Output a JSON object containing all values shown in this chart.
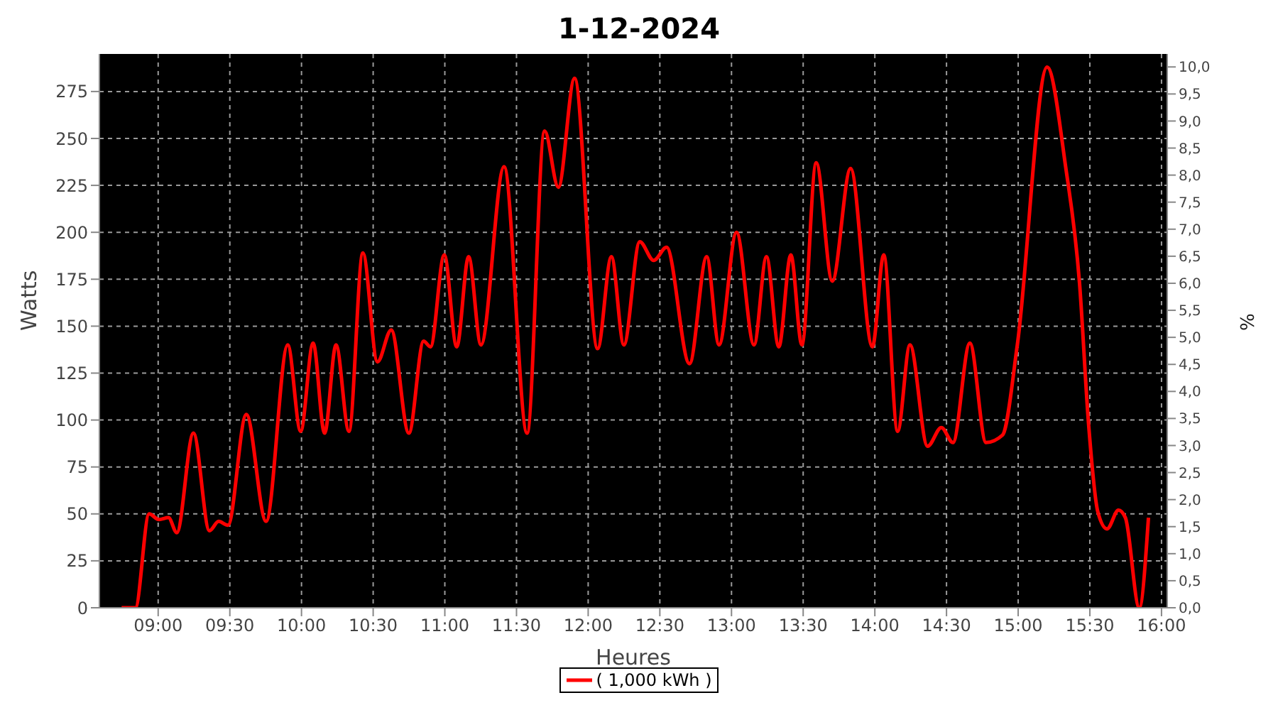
{
  "chart_data": {
    "type": "line",
    "title": "1-12-2024",
    "xlabel": "Heures",
    "ylabel": "Watts",
    "y2label": "%",
    "x": [
      8.745,
      8.841,
      8.937,
      9.005,
      9.072,
      9.13,
      9.246,
      9.358,
      9.422,
      9.487,
      9.615,
      9.753,
      9.904,
      9.994,
      10.081,
      10.161,
      10.241,
      10.331,
      10.428,
      10.53,
      10.626,
      10.749,
      10.852,
      10.9,
      10.996,
      11.083,
      11.166,
      11.252,
      11.413,
      11.574,
      11.696,
      11.792,
      11.905,
      12.066,
      12.162,
      12.249,
      12.36,
      12.457,
      12.547,
      12.707,
      12.827,
      12.913,
      13.035,
      13.157,
      13.244,
      13.33,
      13.414,
      13.491,
      13.591,
      13.703,
      13.831,
      13.983,
      14.062,
      14.159,
      14.245,
      14.368,
      14.464,
      14.545,
      14.663,
      14.776,
      14.891,
      14.994,
      15.202,
      15.331,
      15.428,
      15.491,
      15.556,
      15.62,
      15.7,
      15.748,
      15.845,
      15.909
    ],
    "series": [
      {
        "name": "( 1,000 kWh )",
        "color": "#ff0000",
        "values": [
          0,
          0,
          50,
          47,
          48,
          40,
          93,
          41,
          46,
          44,
          103,
          46,
          140,
          94,
          141,
          93,
          140,
          94,
          189,
          131,
          148,
          93,
          142,
          139,
          188,
          139,
          187,
          140,
          235,
          93,
          254,
          224,
          282,
          138,
          187,
          140,
          195,
          185,
          192,
          130,
          187,
          140,
          200,
          140,
          187,
          139,
          188,
          140,
          237,
          174,
          234,
          139,
          188,
          94,
          140,
          86,
          96,
          88,
          141,
          88,
          92,
          140,
          288,
          235,
          173,
          98,
          51,
          42,
          52,
          48,
          0,
          48
        ]
      }
    ],
    "xlim": [
      8.59,
      16.04
    ],
    "xticks": [
      {
        "value": 9,
        "label": "09:00"
      },
      {
        "value": 9.5,
        "label": "09:30"
      },
      {
        "value": 10,
        "label": "10:00"
      },
      {
        "value": 10.5,
        "label": "10:30"
      },
      {
        "value": 11,
        "label": "11:00"
      },
      {
        "value": 11.5,
        "label": "11:30"
      },
      {
        "value": 12,
        "label": "12:00"
      },
      {
        "value": 12.5,
        "label": "12:30"
      },
      {
        "value": 13,
        "label": "13:00"
      },
      {
        "value": 13.5,
        "label": "13:30"
      },
      {
        "value": 14,
        "label": "14:00"
      },
      {
        "value": 14.5,
        "label": "14:30"
      },
      {
        "value": 15,
        "label": "15:00"
      },
      {
        "value": 15.5,
        "label": "15:30"
      },
      {
        "value": 16,
        "label": "16:00"
      }
    ],
    "ylim": [
      0,
      295
    ],
    "yticks": [
      0,
      25,
      50,
      75,
      100,
      125,
      150,
      175,
      200,
      225,
      250,
      275
    ],
    "y2lim": [
      0,
      10.24
    ],
    "y2ticks": [
      {
        "value": 0,
        "label": "0,0"
      },
      {
        "value": 0.5,
        "label": "0,5"
      },
      {
        "value": 1,
        "label": "1,0"
      },
      {
        "value": 1.5,
        "label": "1,5"
      },
      {
        "value": 2,
        "label": "2,0"
      },
      {
        "value": 2.5,
        "label": "2,5"
      },
      {
        "value": 3,
        "label": "3,0"
      },
      {
        "value": 3.5,
        "label": "3,5"
      },
      {
        "value": 4,
        "label": "4,0"
      },
      {
        "value": 4.5,
        "label": "4,5"
      },
      {
        "value": 5,
        "label": "5,0"
      },
      {
        "value": 5.5,
        "label": "5,5"
      },
      {
        "value": 6,
        "label": "6,0"
      },
      {
        "value": 6.5,
        "label": "6,5"
      },
      {
        "value": 7,
        "label": "7,0"
      },
      {
        "value": 7.5,
        "label": "7,5"
      },
      {
        "value": 8,
        "label": "8,0"
      },
      {
        "value": 8.5,
        "label": "8,5"
      },
      {
        "value": 9,
        "label": "9,0"
      },
      {
        "value": 9.5,
        "label": "9,5"
      },
      {
        "value": 10,
        "label": "10,0"
      }
    ],
    "grid": true,
    "legend": "bottom",
    "marker": "none",
    "line_style": "solid"
  }
}
